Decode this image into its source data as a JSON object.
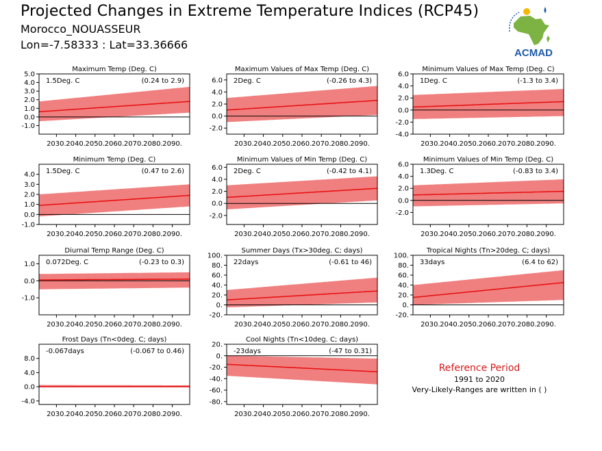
{
  "header": {
    "title": "Projected Changes in Extreme Temperature Indices (RCP45)",
    "station": "Morocco_NOUASSEUR",
    "coords": "Lon=-7.58333 : Lat=33.36666"
  },
  "logo": {
    "text": "ACMAD",
    "icon": "africa-map-logo-icon",
    "colors": {
      "africa": "#7cb342",
      "text": "#1e5aa8",
      "sun": "#f5b800",
      "drop": "#1e5aa8"
    }
  },
  "colors": {
    "band": "#f08080",
    "line": "#e81010",
    "zero_line": "#000000"
  },
  "reference": {
    "title": "Reference Period",
    "years": "1991 to 2020",
    "note": "Very-Likely-Ranges are written in ( )"
  },
  "chart_data": [
    {
      "type": "area",
      "title": "Maximum Temp (Deg. C)",
      "summary": "1.5Deg. C",
      "range_text": "(0.24 to 2.9)",
      "x": [
        2021,
        2099
      ],
      "ylim": [
        -2.0,
        5.0
      ],
      "yticks": [
        "5.0",
        "4.0",
        "3.0",
        "2.0",
        "1.0",
        "0.0",
        "-1.0"
      ],
      "ytick_values": [
        5,
        4,
        3,
        2,
        1,
        0,
        -1
      ],
      "xticks": [
        "2030.",
        "2040.",
        "2050.",
        "2060.",
        "2070.",
        "2080.",
        "2090."
      ],
      "series": [
        {
          "values": [
            0.6,
            1.8
          ]
        }
      ],
      "band": {
        "low": [
          -0.5,
          0.5
        ],
        "high": [
          1.8,
          3.5
        ]
      }
    },
    {
      "type": "area",
      "title": "Maximum Values of Max Temp (Deg. C)",
      "summary": "2Deg. C",
      "range_text": "(-0.26 to 4.3)",
      "x": [
        2021,
        2099
      ],
      "ylim": [
        -3.0,
        7.0
      ],
      "yticks": [
        "6.0",
        "4.0",
        "2.0",
        "0.0",
        "-2.0"
      ],
      "ytick_values": [
        6,
        4,
        2,
        0,
        -2
      ],
      "xticks": [
        "2030.",
        "2040.",
        "2050.",
        "2060.",
        "2070.",
        "2080.",
        "2090."
      ],
      "series": [
        {
          "values": [
            1.0,
            2.6
          ]
        }
      ],
      "band": {
        "low": [
          -1.0,
          0.2
        ],
        "high": [
          3.0,
          5.0
        ]
      }
    },
    {
      "type": "area",
      "title": "Minimum Values of Max Temp (Deg. C)",
      "summary": "1Deg. C",
      "range_text": "(-1.3 to 3.4)",
      "x": [
        2021,
        2099
      ],
      "ylim": [
        -4.0,
        6.0
      ],
      "yticks": [
        "6.0",
        "4.0",
        "2.0",
        "0.0",
        "-2.0",
        "-4.0"
      ],
      "ytick_values": [
        6,
        4,
        2,
        0,
        -2,
        -4
      ],
      "xticks": [
        "2030.",
        "2040.",
        "2050.",
        "2060.",
        "2070.",
        "2080.",
        "2090."
      ],
      "series": [
        {
          "values": [
            0.5,
            1.4
          ]
        }
      ],
      "band": {
        "low": [
          -1.5,
          -1.0
        ],
        "high": [
          2.5,
          3.5
        ]
      }
    },
    {
      "type": "area",
      "title": "Minimum Temp (Deg. C)",
      "summary": "1.5Deg. C",
      "range_text": "(0.47 to 2.6)",
      "x": [
        2021,
        2099
      ],
      "ylim": [
        -1.0,
        5.0
      ],
      "yticks": [
        "4.0",
        "3.0",
        "2.0",
        "1.0",
        "0.0",
        "-1.0"
      ],
      "ytick_values": [
        4,
        3,
        2,
        1,
        0,
        -1
      ],
      "xticks": [
        "2030.",
        "2040.",
        "2050.",
        "2060.",
        "2070.",
        "2080.",
        "2090."
      ],
      "series": [
        {
          "values": [
            0.9,
            1.9
          ]
        }
      ],
      "band": {
        "low": [
          -0.2,
          0.8
        ],
        "high": [
          2.0,
          3.0
        ]
      }
    },
    {
      "type": "area",
      "title": "Minimum Values of Min Temp (Deg. C)",
      "summary": "2Deg. C",
      "range_text": "(-0.42 to 4.1)",
      "x": [
        2021,
        2099
      ],
      "ylim": [
        -3.5,
        6.5
      ],
      "yticks": [
        "6.0",
        "4.0",
        "2.0",
        "0.0",
        "-2.0"
      ],
      "ytick_values": [
        6,
        4,
        2,
        0,
        -2
      ],
      "xticks": [
        "2030.",
        "2040.",
        "2050.",
        "2060.",
        "2070.",
        "2080.",
        "2090."
      ],
      "series": [
        {
          "values": [
            1.0,
            2.5
          ]
        }
      ],
      "band": {
        "low": [
          -1.0,
          0.5
        ],
        "high": [
          3.0,
          4.5
        ]
      }
    },
    {
      "type": "area",
      "title": "Minimum Values of Min Temp (Deg. C)",
      "summary": "1.3Deg. C",
      "range_text": "(-0.83 to 3.4)",
      "x": [
        2021,
        2099
      ],
      "ylim": [
        -4.0,
        6.0
      ],
      "yticks": [
        "6.0",
        "4.0",
        "2.0",
        "0.0",
        "-2.0"
      ],
      "ytick_values": [
        6,
        4,
        2,
        0,
        -2
      ],
      "xticks": [
        "2030.",
        "2040.",
        "2050.",
        "2060.",
        "2070.",
        "2080.",
        "2090."
      ],
      "series": [
        {
          "values": [
            0.9,
            1.5
          ]
        }
      ],
      "band": {
        "low": [
          -1.0,
          -0.5
        ],
        "high": [
          2.5,
          3.5
        ]
      }
    },
    {
      "type": "area",
      "title": "Diurnal Temp Range (Deg. C)",
      "summary": "0.072Deg. C",
      "range_text": "(-0.23 to 0.3)",
      "x": [
        2021,
        2099
      ],
      "ylim": [
        -2.0,
        1.5
      ],
      "yticks": [
        "1.0",
        "0.0",
        "-1.0"
      ],
      "ytick_values": [
        1,
        0,
        -1
      ],
      "xticks": [
        "2030.",
        "2040.",
        "2050.",
        "2060.",
        "2070.",
        "2080.",
        "2090."
      ],
      "series": [
        {
          "values": [
            0.05,
            0.1
          ]
        }
      ],
      "band": {
        "low": [
          -0.5,
          -0.4
        ],
        "high": [
          0.4,
          0.5
        ]
      }
    },
    {
      "type": "area",
      "title": "Summer Days (Tx>30deg. C; days)",
      "summary": "22days",
      "range_text": "(-0.61 to 46)",
      "x": [
        2021,
        2099
      ],
      "ylim": [
        -20,
        100
      ],
      "yticks": [
        "100.",
        "80.",
        "60.",
        "40.",
        "20.",
        "0.",
        "-20."
      ],
      "ytick_values": [
        100,
        80,
        60,
        40,
        20,
        0,
        -20
      ],
      "xticks": [
        "2030.",
        "2040.",
        "2050.",
        "2060.",
        "2070.",
        "2080.",
        "2090."
      ],
      "series": [
        {
          "values": [
            10,
            28
          ]
        }
      ],
      "band": {
        "low": [
          -5,
          5
        ],
        "high": [
          30,
          55
        ]
      }
    },
    {
      "type": "area",
      "title": "Tropical Nights (Tn>20deg. C; days)",
      "summary": "33days",
      "range_text": "(6.4 to 62)",
      "x": [
        2021,
        2099
      ],
      "ylim": [
        -20,
        100
      ],
      "yticks": [
        "100.",
        "80.",
        "60.",
        "40.",
        "20.",
        "0.",
        "-20."
      ],
      "ytick_values": [
        100,
        80,
        60,
        40,
        20,
        0,
        -20
      ],
      "xticks": [
        "2030.",
        "2040.",
        "2050.",
        "2060.",
        "2070.",
        "2080.",
        "2090."
      ],
      "series": [
        {
          "values": [
            15,
            45
          ]
        }
      ],
      "band": {
        "low": [
          0,
          10
        ],
        "high": [
          40,
          70
        ]
      }
    },
    {
      "type": "area",
      "title": "Frost Days (Tn<0deg. C; days)",
      "summary": "-0.067days",
      "range_text": "(-0.067 to 0.46)",
      "x": [
        2021,
        2099
      ],
      "ylim": [
        -5.0,
        12.0
      ],
      "yticks": [
        "8.0",
        "4.0",
        "0.0",
        "-4.0"
      ],
      "ytick_values": [
        8,
        4,
        0,
        -4
      ],
      "xticks": [
        "2030.",
        "2040.",
        "2050.",
        "2060.",
        "2070.",
        "2080.",
        "2090."
      ],
      "series": [
        {
          "values": [
            0.0,
            0.0
          ]
        }
      ],
      "band": {
        "low": [
          0.0,
          0.0
        ],
        "high": [
          0.5,
          0.4
        ]
      }
    },
    {
      "type": "area",
      "title": "Cool Nights (Tn<10deg. C; days)",
      "summary": "-23days",
      "range_text": "(-47 to 0.31)",
      "x": [
        2021,
        2099
      ],
      "ylim": [
        -85,
        20
      ],
      "yticks": [
        "20.",
        "0.",
        "-20.",
        "-40.",
        "-60.",
        "-80."
      ],
      "ytick_values": [
        20,
        0,
        -20,
        -40,
        -60,
        -80
      ],
      "xticks": [
        "2030.",
        "2040.",
        "2050.",
        "2060.",
        "2070.",
        "2080.",
        "2090."
      ],
      "series": [
        {
          "values": [
            -15,
            -28
          ]
        }
      ],
      "band": {
        "low": [
          -35,
          -50
        ],
        "high": [
          0,
          -5
        ]
      }
    }
  ]
}
